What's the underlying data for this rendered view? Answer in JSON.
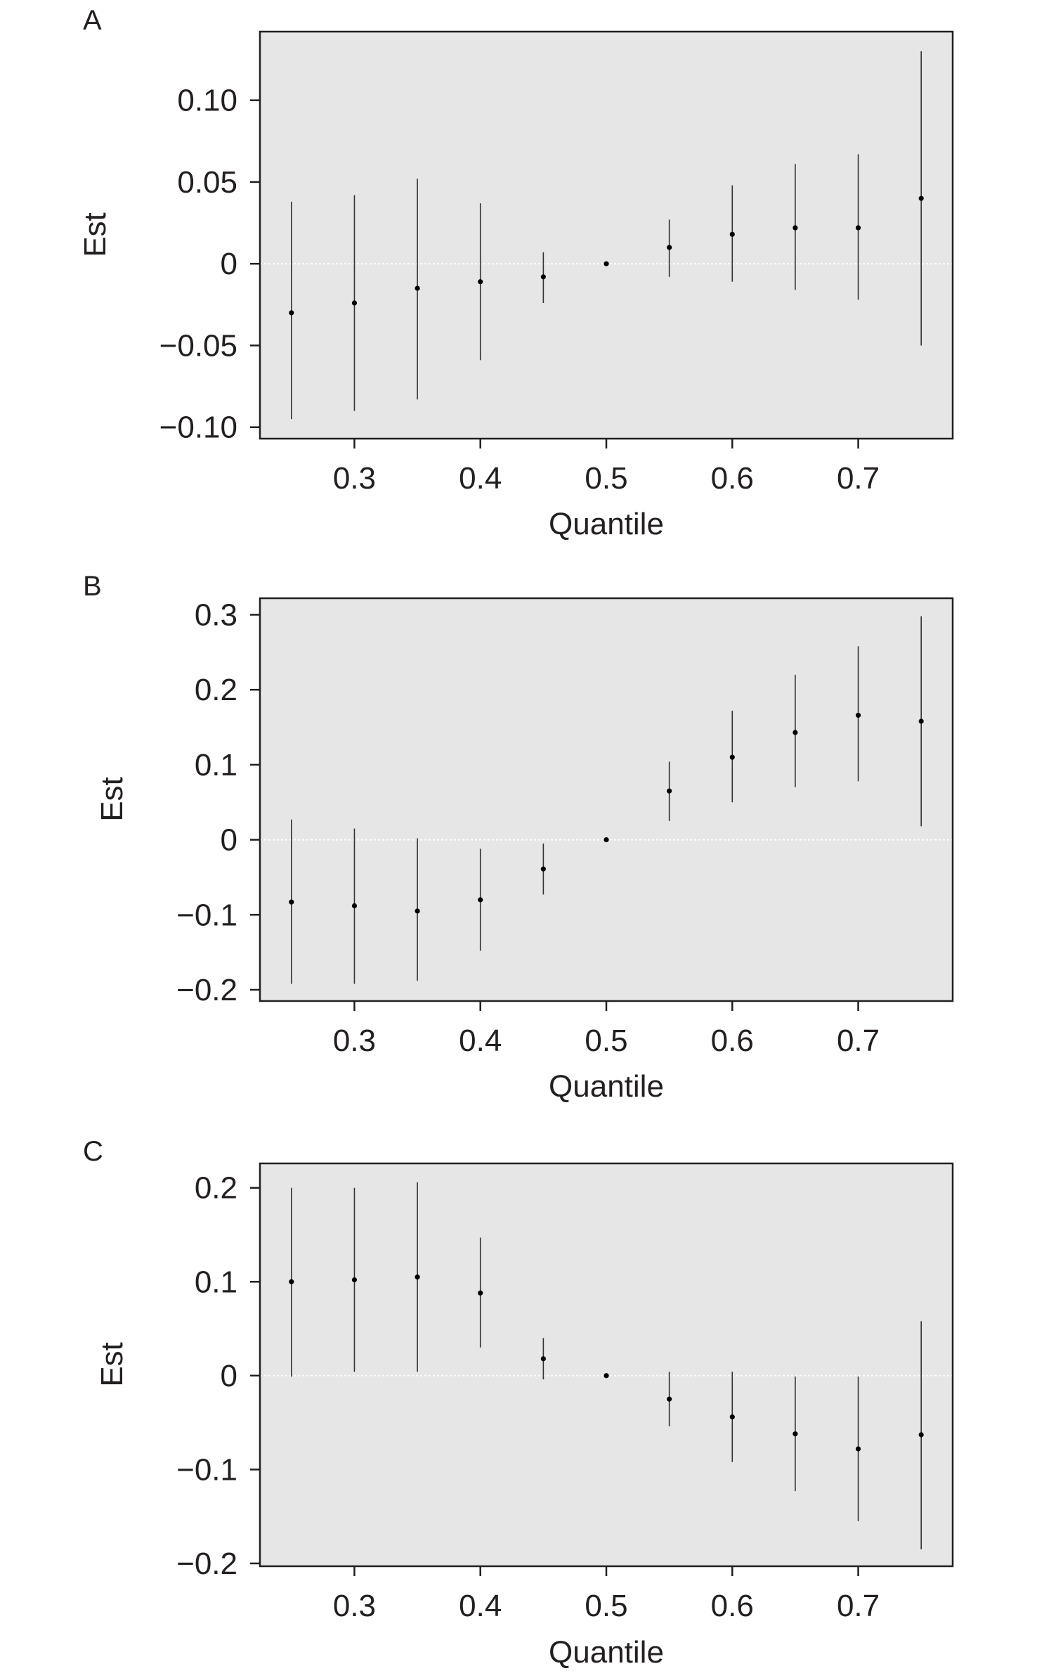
{
  "chart_data": [
    {
      "type": "scatter",
      "panel_label": "A",
      "xlabel": "Quantile",
      "ylabel": "Est",
      "xlim": [
        0.225,
        0.775
      ],
      "ylim": [
        -0.107,
        0.142
      ],
      "x_ticks": [
        0.3,
        0.4,
        0.5,
        0.6,
        0.7
      ],
      "x_tick_labels": [
        "0.3",
        "0.4",
        "0.5",
        "0.6",
        "0.7"
      ],
      "y_ticks": [
        -0.1,
        -0.05,
        0,
        0.05,
        0.1
      ],
      "y_tick_labels": [
        "−0.10",
        "−0.05",
        "0",
        "0.05",
        "0.10"
      ],
      "reference_line": 0,
      "background": "#e6e6e6",
      "points": [
        {
          "x": 0.25,
          "est": -0.03,
          "lower": -0.095,
          "upper": 0.038
        },
        {
          "x": 0.3,
          "est": -0.024,
          "lower": -0.09,
          "upper": 0.042
        },
        {
          "x": 0.35,
          "est": -0.015,
          "lower": -0.083,
          "upper": 0.052
        },
        {
          "x": 0.4,
          "est": -0.011,
          "lower": -0.059,
          "upper": 0.037
        },
        {
          "x": 0.45,
          "est": -0.008,
          "lower": -0.024,
          "upper": 0.007
        },
        {
          "x": 0.5,
          "est": 0.0,
          "lower": 0.0,
          "upper": 0.0
        },
        {
          "x": 0.55,
          "est": 0.01,
          "lower": -0.008,
          "upper": 0.027
        },
        {
          "x": 0.6,
          "est": 0.018,
          "lower": -0.011,
          "upper": 0.048
        },
        {
          "x": 0.65,
          "est": 0.022,
          "lower": -0.016,
          "upper": 0.061
        },
        {
          "x": 0.7,
          "est": 0.022,
          "lower": -0.022,
          "upper": 0.067
        },
        {
          "x": 0.75,
          "est": 0.04,
          "lower": -0.05,
          "upper": 0.13
        }
      ]
    },
    {
      "type": "scatter",
      "panel_label": "B",
      "xlabel": "Quantile",
      "ylabel": "Est",
      "xlim": [
        0.225,
        0.775
      ],
      "ylim": [
        -0.215,
        0.322
      ],
      "x_ticks": [
        0.3,
        0.4,
        0.5,
        0.6,
        0.7
      ],
      "x_tick_labels": [
        "0.3",
        "0.4",
        "0.5",
        "0.6",
        "0.7"
      ],
      "y_ticks": [
        -0.2,
        -0.1,
        0,
        0.1,
        0.2,
        0.3
      ],
      "y_tick_labels": [
        "−0.2",
        "−0.1",
        "0",
        "0.1",
        "0.2",
        "0.3"
      ],
      "reference_line": 0,
      "background": "#e6e6e6",
      "points": [
        {
          "x": 0.25,
          "est": -0.083,
          "lower": -0.192,
          "upper": 0.027
        },
        {
          "x": 0.3,
          "est": -0.088,
          "lower": -0.192,
          "upper": 0.015
        },
        {
          "x": 0.35,
          "est": -0.095,
          "lower": -0.188,
          "upper": 0.002
        },
        {
          "x": 0.4,
          "est": -0.08,
          "lower": -0.148,
          "upper": -0.012
        },
        {
          "x": 0.45,
          "est": -0.039,
          "lower": -0.073,
          "upper": -0.005
        },
        {
          "x": 0.5,
          "est": 0.0,
          "lower": 0.0,
          "upper": 0.0
        },
        {
          "x": 0.55,
          "est": 0.065,
          "lower": 0.025,
          "upper": 0.104
        },
        {
          "x": 0.6,
          "est": 0.11,
          "lower": 0.05,
          "upper": 0.172
        },
        {
          "x": 0.65,
          "est": 0.143,
          "lower": 0.07,
          "upper": 0.22
        },
        {
          "x": 0.7,
          "est": 0.166,
          "lower": 0.078,
          "upper": 0.258
        },
        {
          "x": 0.75,
          "est": 0.158,
          "lower": 0.018,
          "upper": 0.298
        }
      ]
    },
    {
      "type": "scatter",
      "panel_label": "C",
      "xlabel": "Quantile",
      "ylabel": "Est",
      "xlim": [
        0.225,
        0.775
      ],
      "ylim": [
        -0.203,
        0.226
      ],
      "x_ticks": [
        0.3,
        0.4,
        0.5,
        0.6,
        0.7
      ],
      "x_tick_labels": [
        "0.3",
        "0.4",
        "0.5",
        "0.6",
        "0.7"
      ],
      "y_ticks": [
        -0.2,
        -0.1,
        0,
        0.1,
        0.2
      ],
      "y_tick_labels": [
        "−0.2",
        "−0.1",
        "0",
        "0.1",
        "0.2"
      ],
      "reference_line": 0,
      "background": "#e6e6e6",
      "points": [
        {
          "x": 0.25,
          "est": 0.1,
          "lower": -0.001,
          "upper": 0.2
        },
        {
          "x": 0.3,
          "est": 0.102,
          "lower": 0.004,
          "upper": 0.2
        },
        {
          "x": 0.35,
          "est": 0.105,
          "lower": 0.004,
          "upper": 0.206
        },
        {
          "x": 0.4,
          "est": 0.088,
          "lower": 0.03,
          "upper": 0.147
        },
        {
          "x": 0.45,
          "est": 0.018,
          "lower": -0.004,
          "upper": 0.04
        },
        {
          "x": 0.5,
          "est": 0.0,
          "lower": 0.0,
          "upper": 0.0
        },
        {
          "x": 0.55,
          "est": -0.025,
          "lower": -0.054,
          "upper": 0.004
        },
        {
          "x": 0.6,
          "est": -0.044,
          "lower": -0.092,
          "upper": 0.004
        },
        {
          "x": 0.65,
          "est": -0.062,
          "lower": -0.123,
          "upper": -0.001
        },
        {
          "x": 0.7,
          "est": -0.078,
          "lower": -0.155,
          "upper": -0.001
        },
        {
          "x": 0.75,
          "est": -0.063,
          "lower": -0.185,
          "upper": 0.058
        }
      ]
    }
  ]
}
